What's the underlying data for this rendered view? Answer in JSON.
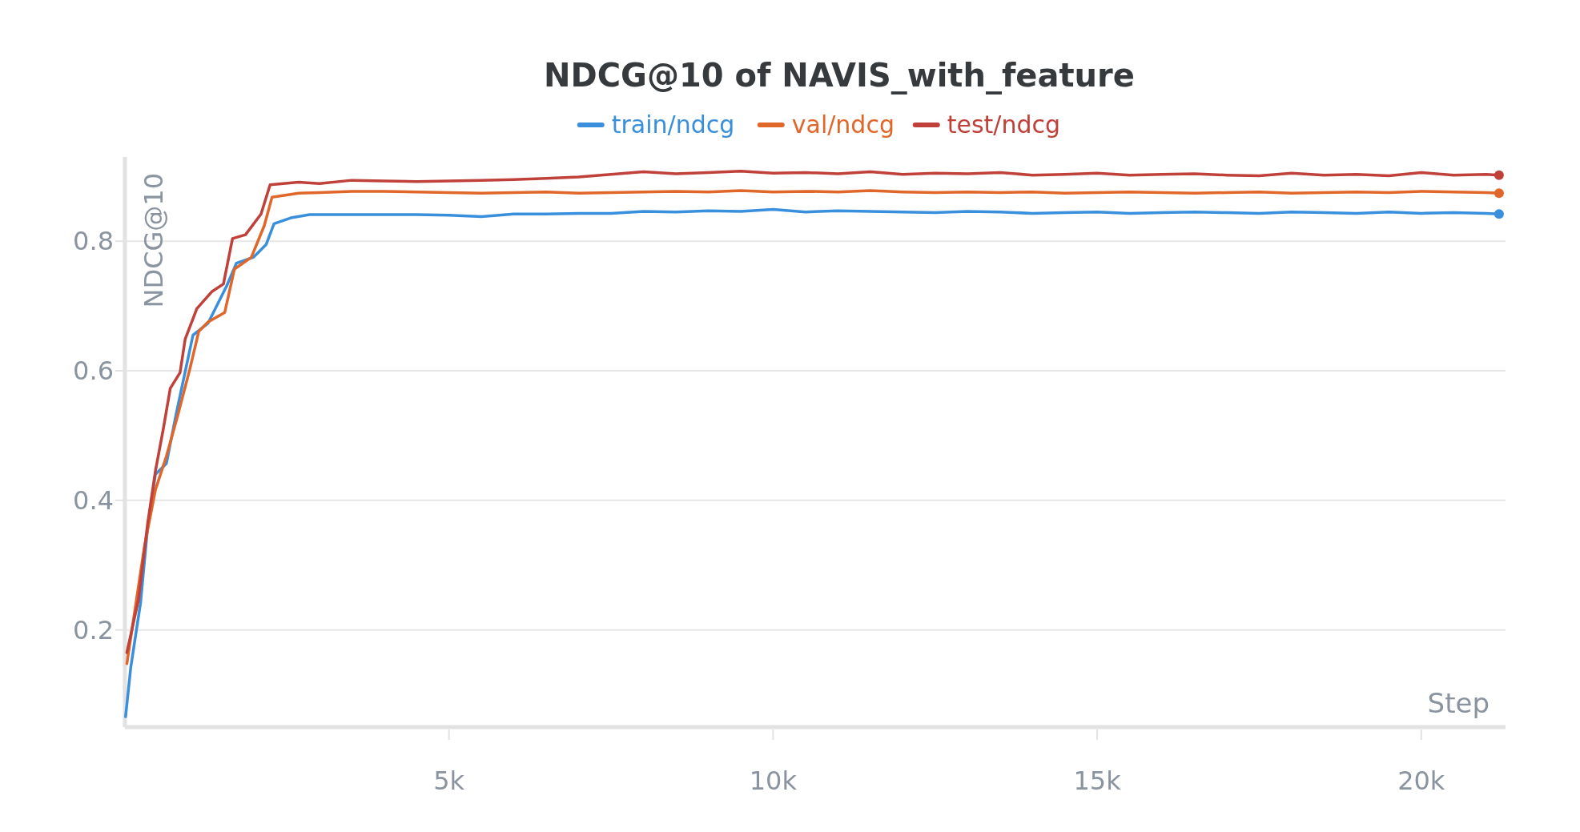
{
  "chart_data": {
    "type": "line",
    "title": "NDCG@10 of NAVIS_with_feature",
    "xlabel": "Step",
    "ylabel": "NDCG@10",
    "xlim": [
      0,
      21300
    ],
    "ylim": [
      0.05,
      0.93
    ],
    "xticks": [
      {
        "value": 5000,
        "label": "5k"
      },
      {
        "value": 10000,
        "label": "10k"
      },
      {
        "value": 15000,
        "label": "15k"
      },
      {
        "value": 20000,
        "label": "20k"
      }
    ],
    "yticks": [
      0.2,
      0.4,
      0.6,
      0.8
    ],
    "grid": "y",
    "legend": "top",
    "line_style": "solid",
    "series": [
      {
        "name": "train/ndcg",
        "color": "#3a8fdd",
        "x": [
          10,
          90,
          240,
          350,
          470,
          640,
          790,
          1050,
          1280,
          1570,
          1720,
          1980,
          2180,
          2300,
          2560,
          2850,
          3000,
          3500,
          4000,
          4500,
          5000,
          5500,
          6000,
          6500,
          7000,
          7500,
          8000,
          8500,
          9000,
          9500,
          10000,
          10500,
          11000,
          11500,
          12000,
          12500,
          13000,
          13500,
          14000,
          14500,
          15000,
          15500,
          16000,
          16500,
          17000,
          17500,
          18000,
          18500,
          19000,
          19500,
          20000,
          20500,
          21000,
          21200
        ],
        "values": [
          0.066,
          0.142,
          0.241,
          0.358,
          0.44,
          0.457,
          0.533,
          0.655,
          0.673,
          0.731,
          0.766,
          0.775,
          0.795,
          0.827,
          0.836,
          0.841,
          0.841,
          0.841,
          0.841,
          0.841,
          0.84,
          0.838,
          0.842,
          0.842,
          0.843,
          0.843,
          0.846,
          0.845,
          0.847,
          0.846,
          0.849,
          0.845,
          0.847,
          0.846,
          0.845,
          0.844,
          0.846,
          0.845,
          0.843,
          0.844,
          0.845,
          0.843,
          0.844,
          0.845,
          0.844,
          0.843,
          0.845,
          0.844,
          0.843,
          0.845,
          0.843,
          0.844,
          0.843,
          0.842
        ]
      },
      {
        "name": "val/ndcg",
        "color": "#e0662a",
        "x": [
          30,
          300,
          470,
          640,
          820,
          1000,
          1140,
          1280,
          1540,
          1690,
          1950,
          2150,
          2270,
          2680,
          3000,
          3500,
          4000,
          4500,
          5000,
          5500,
          6000,
          6500,
          7000,
          7500,
          8000,
          8500,
          9000,
          9500,
          10000,
          10500,
          11000,
          11500,
          12000,
          12500,
          13000,
          13500,
          14000,
          14500,
          15000,
          15500,
          16000,
          16500,
          17000,
          17500,
          18000,
          18500,
          19000,
          19500,
          20000,
          20500,
          21000,
          21200
        ],
        "values": [
          0.148,
          0.328,
          0.416,
          0.468,
          0.533,
          0.602,
          0.661,
          0.675,
          0.69,
          0.757,
          0.775,
          0.824,
          0.868,
          0.874,
          0.875,
          0.877,
          0.877,
          0.876,
          0.875,
          0.874,
          0.875,
          0.876,
          0.874,
          0.875,
          0.876,
          0.877,
          0.876,
          0.878,
          0.876,
          0.877,
          0.876,
          0.878,
          0.876,
          0.875,
          0.876,
          0.875,
          0.876,
          0.874,
          0.875,
          0.876,
          0.875,
          0.874,
          0.875,
          0.876,
          0.874,
          0.875,
          0.876,
          0.875,
          0.877,
          0.876,
          0.875,
          0.874
        ]
      },
      {
        "name": "test/ndcg",
        "color": "#c0403a",
        "x": [
          30,
          210,
          350,
          470,
          590,
          700,
          850,
          930,
          1110,
          1340,
          1520,
          1660,
          1860,
          2100,
          2240,
          2680,
          3000,
          3500,
          4000,
          4500,
          5000,
          5500,
          6000,
          6500,
          7000,
          7500,
          8000,
          8500,
          9000,
          9500,
          10000,
          10500,
          11000,
          11500,
          12000,
          12500,
          13000,
          13500,
          14000,
          14500,
          15000,
          15500,
          16000,
          16500,
          17000,
          17500,
          18000,
          18500,
          19000,
          19500,
          20000,
          20500,
          21000,
          21200
        ],
        "values": [
          0.165,
          0.247,
          0.364,
          0.445,
          0.509,
          0.573,
          0.597,
          0.649,
          0.696,
          0.722,
          0.734,
          0.804,
          0.81,
          0.842,
          0.887,
          0.891,
          0.889,
          0.894,
          0.893,
          0.892,
          0.893,
          0.894,
          0.895,
          0.897,
          0.899,
          0.903,
          0.907,
          0.904,
          0.906,
          0.908,
          0.905,
          0.906,
          0.904,
          0.907,
          0.903,
          0.905,
          0.904,
          0.906,
          0.902,
          0.903,
          0.905,
          0.902,
          0.903,
          0.904,
          0.902,
          0.901,
          0.905,
          0.902,
          0.903,
          0.901,
          0.906,
          0.902,
          0.903,
          0.902
        ]
      }
    ]
  }
}
